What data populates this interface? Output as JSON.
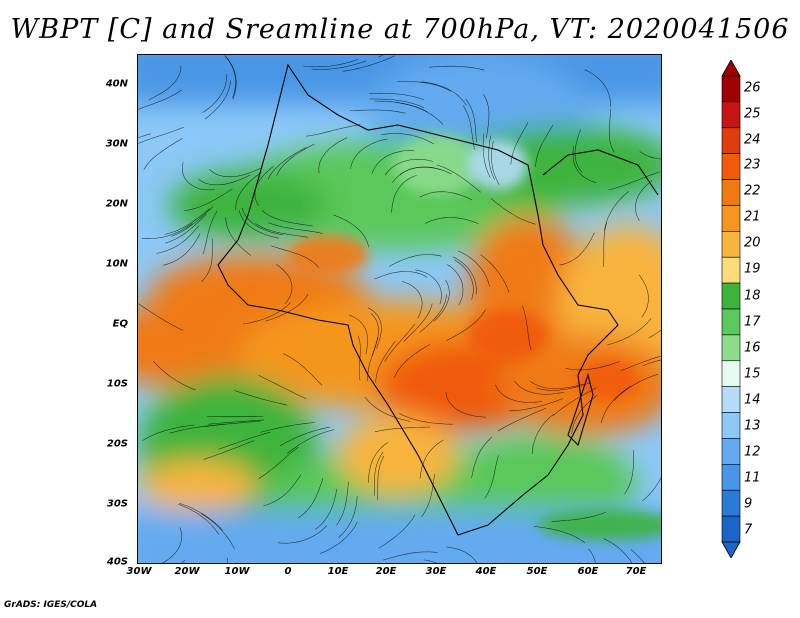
{
  "title": "WBPT [C] and Sreamline at 700hPa, VT: 2020041506",
  "footer": "GrADS: IGES/COLA",
  "map": {
    "lat_labels": [
      "40N",
      "30N",
      "20N",
      "10N",
      "EQ",
      "10S",
      "20S",
      "30S",
      "40S"
    ],
    "lon_labels": [
      "30W",
      "20W",
      "10W",
      "0",
      "10E",
      "20E",
      "30E",
      "40E",
      "50E",
      "60E",
      "70E"
    ],
    "fields": [
      "wet-bulb potential temperature shading",
      "700hPa streamlines",
      "coastlines and country borders"
    ]
  },
  "colorbar": {
    "labels": [
      "26",
      "25",
      "24",
      "23",
      "22",
      "21",
      "20",
      "19",
      "18",
      "17",
      "16",
      "15",
      "14",
      "13",
      "12",
      "11",
      "9",
      "7"
    ],
    "colors": [
      "#a00000",
      "#c81414",
      "#e03c0c",
      "#f05a0a",
      "#f07a12",
      "#f5961e",
      "#f8b43c",
      "#fadc78",
      "#3cb43c",
      "#5ac85a",
      "#8cdc8c",
      "#e6faf0",
      "#b4dcf8",
      "#8cc8f8",
      "#64aaf0",
      "#4896e6",
      "#2c7ad8",
      "#1c64c8"
    ]
  }
}
